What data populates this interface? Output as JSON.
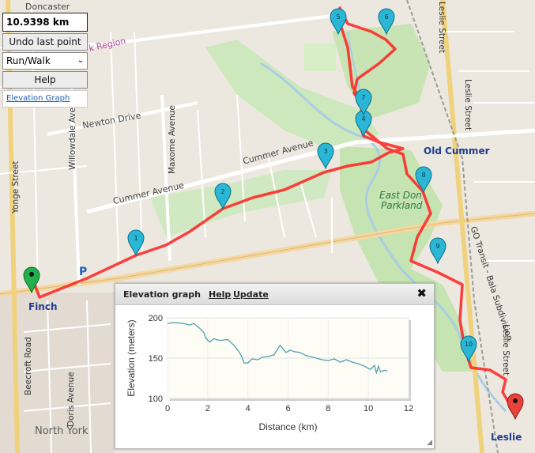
{
  "controls": {
    "distance": "10.9398 km",
    "undo_label": "Undo last point",
    "mode_value": "Run/Walk",
    "help_label": "Help",
    "elevation_link": "Elevation Graph"
  },
  "markers": [
    {
      "label": "1"
    },
    {
      "label": "2"
    },
    {
      "label": "3"
    },
    {
      "label": "4"
    },
    {
      "label": "5"
    },
    {
      "label": "6"
    },
    {
      "label": "7"
    },
    {
      "label": "8"
    },
    {
      "label": "9"
    },
    {
      "label": "10"
    }
  ],
  "map_labels": {
    "doncaster": "Doncaster",
    "region": "k Region",
    "newton": "Newton Drive",
    "cummer_ave_1": "Cummer Avenue",
    "cummer_ave_2": "Cummer Avenue",
    "old_cummer": "Old Cummer",
    "east_don": "East Don",
    "parkland": "Parkland",
    "finch": "Finch",
    "north_york": "North York",
    "leslie": "Leslie",
    "yonge": "Yonge Street",
    "willowdale": "Willowdale Avenue",
    "maxome": "Maxome Avenue",
    "beecroft": "Beecroft Road",
    "doris": "Doris Avenue",
    "leslie_street_1": "Leslie Street",
    "leslie_street_2": "Leslie Street",
    "leslie_street_3": "Leslie Street",
    "go_transit": "GO Transit - Bala Subdivision",
    "parking": "P"
  },
  "elevation_window": {
    "title": "Elevation graph",
    "help": "Help",
    "update": "Update",
    "close": "✖"
  },
  "chart_data": {
    "type": "line",
    "xlabel": "Distance (km)",
    "ylabel": "Elevation (meters)",
    "xlim": [
      0,
      12
    ],
    "ylim": [
      100,
      200
    ],
    "xticks": [
      0,
      2,
      4,
      6,
      8,
      10,
      12
    ],
    "yticks": [
      100,
      150,
      200
    ],
    "grid": true,
    "x": [
      0,
      0.3,
      0.8,
      1.1,
      1.3,
      1.6,
      1.8,
      1.9,
      2.1,
      2.3,
      2.6,
      3.0,
      3.3,
      3.5,
      3.7,
      3.8,
      4.0,
      4.2,
      4.5,
      4.7,
      5.0,
      5.3,
      5.6,
      5.9,
      6.1,
      6.3,
      6.6,
      6.9,
      7.1,
      7.4,
      7.7,
      8.0,
      8.3,
      8.6,
      8.9,
      9.2,
      9.5,
      9.8,
      10.1,
      10.3,
      10.4,
      10.5,
      10.6,
      10.8,
      10.94
    ],
    "y": [
      193,
      194,
      193,
      191,
      193,
      187,
      182,
      175,
      170,
      174,
      172,
      173,
      166,
      160,
      152,
      144,
      144,
      149,
      148,
      151,
      152,
      154,
      166,
      157,
      160,
      158,
      157,
      153,
      152,
      150,
      148,
      147,
      149,
      145,
      148,
      145,
      143,
      140,
      136,
      141,
      132,
      140,
      133,
      135,
      134
    ]
  }
}
